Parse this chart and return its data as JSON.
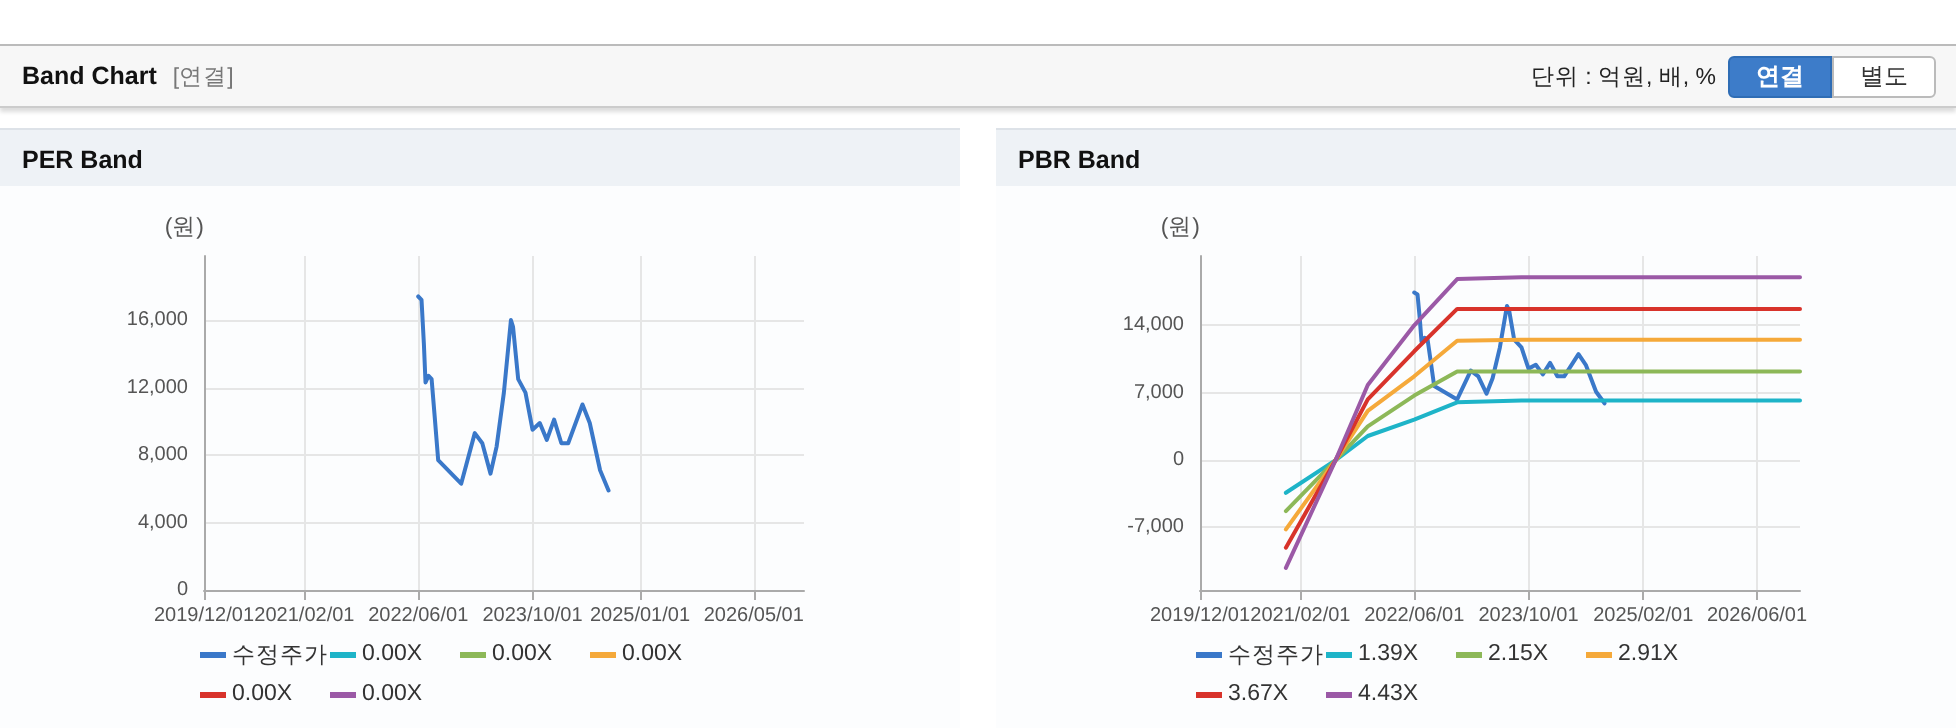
{
  "chart_data": [
    {
      "type": "other",
      "title": "Band Chart",
      "annotations": [
        "[연결]",
        "단위 : 억원, 배, %",
        "연결",
        "별도"
      ]
    },
    {
      "type": "line",
      "title": "PER Band",
      "ylabel": "(원)",
      "xlim": [
        "2019-12-01",
        "2026-12-01"
      ],
      "xticks": [
        {
          "value": "2019-12-01",
          "label": "2019/12/01"
        },
        {
          "value": "2021-02-01",
          "label": "2021/02/01"
        },
        {
          "value": "2022-06-01",
          "label": "2022/06/01"
        },
        {
          "value": "2023-10-01",
          "label": "2023/10/01"
        },
        {
          "value": "2025-01-01",
          "label": "2025/01/01"
        },
        {
          "value": "2026-05-01",
          "label": "2026/05/01"
        }
      ],
      "ylim": [
        0,
        19800
      ],
      "yticks": [
        0,
        {
          "value": 4000,
          "label": "4,000"
        },
        {
          "value": 8000,
          "label": "8,000"
        },
        {
          "value": 12000,
          "label": "12,000"
        },
        {
          "value": 16000,
          "label": "16,000"
        }
      ],
      "grid": true,
      "legend": "bottom",
      "marker": "none",
      "line_style": "solid",
      "series": [
        {
          "name": "수정주가",
          "color": "#3a78c9",
          "x": [
            "2022-06-01",
            "2022-06-15",
            "2022-06-25",
            "2022-07-02",
            "2022-07-15",
            "2022-07-28",
            "2022-08-10",
            "2022-08-25",
            "2022-12-01",
            "2023-01-28",
            "2023-03-01",
            "2023-04-05",
            "2023-05-01",
            "2023-06-01",
            "2023-07-01",
            "2023-07-10",
            "2023-08-01",
            "2023-09-01",
            "2023-10-01",
            "2023-11-01",
            "2023-12-01",
            "2024-01-01",
            "2024-02-01",
            "2024-03-01",
            "2024-05-01",
            "2024-06-01",
            "2024-07-15",
            "2024-08-20"
          ],
          "values": [
            17400,
            17200,
            14600,
            12300,
            12700,
            12500,
            10300,
            7700,
            6300,
            9300,
            8700,
            6900,
            8500,
            11700,
            16000,
            15600,
            12500,
            11700,
            9500,
            9900,
            8900,
            10100,
            8700,
            8700,
            11000,
            9900,
            7100,
            5900
          ]
        },
        {
          "name": "0.00X",
          "color": "#1eb4c8"
        },
        {
          "name": "0.00X",
          "color": "#8db858"
        },
        {
          "name": "0.00X",
          "color": "#f5a93a"
        },
        {
          "name": "0.00X",
          "color": "#d8332b"
        },
        {
          "name": "0.00X",
          "color": "#9b59a6"
        }
      ]
    },
    {
      "type": "line",
      "title": "PBR Band",
      "ylabel": "(원)",
      "xlim": [
        "2019-12-01",
        "2026-12-01"
      ],
      "xticks": [
        {
          "value": "2019-12-01",
          "label": "2019/12/01"
        },
        {
          "value": "2021-02-01",
          "label": "2021/02/01"
        },
        {
          "value": "2022-06-01",
          "label": "2022/06/01"
        },
        {
          "value": "2023-10-01",
          "label": "2023/10/01"
        },
        {
          "value": "2025-02-01",
          "label": "2025/02/01"
        },
        {
          "value": "2026-06-01",
          "label": "2026/06/01"
        }
      ],
      "ylim": [
        -13500,
        21200
      ],
      "yticks": [
        {
          "value": -7000,
          "label": "-7,000"
        },
        0,
        {
          "value": 7000,
          "label": "7,000"
        },
        {
          "value": 14000,
          "label": "14,000"
        }
      ],
      "grid": true,
      "legend": "bottom",
      "marker": "none",
      "line_style": "solid",
      "series": [
        {
          "name": "수정주가",
          "color": "#3a78c9",
          "x": [
            "2022-06-01",
            "2022-06-15",
            "2022-06-25",
            "2022-07-02",
            "2022-07-15",
            "2022-07-28",
            "2022-08-10",
            "2022-08-25",
            "2022-12-01",
            "2023-01-28",
            "2023-03-01",
            "2023-04-05",
            "2023-05-01",
            "2023-06-01",
            "2023-07-01",
            "2023-07-10",
            "2023-08-01",
            "2023-09-01",
            "2023-10-01",
            "2023-11-01",
            "2023-12-01",
            "2024-01-01",
            "2024-02-01",
            "2024-03-01",
            "2024-05-01",
            "2024-06-01",
            "2024-07-15",
            "2024-08-20"
          ],
          "values": [
            17400,
            17200,
            14600,
            12300,
            12700,
            12500,
            10300,
            7700,
            6300,
            9300,
            8700,
            6900,
            8500,
            11700,
            16000,
            15600,
            12500,
            11700,
            9500,
            9900,
            8900,
            10100,
            8700,
            8700,
            11000,
            9900,
            7100,
            5900
          ]
        },
        {
          "name": "1.39X",
          "color": "#1eb4c8",
          "x": [
            "2020-12-01",
            "2021-07-01",
            "2021-11-15",
            "2022-06-01",
            "2022-12-01",
            "2023-09-01",
            "2026-12-01"
          ],
          "values": [
            -3400,
            0,
            2500,
            4200,
            6000,
            6200,
            6200
          ]
        },
        {
          "name": "2.15X",
          "color": "#8db858",
          "x": [
            "2020-12-01",
            "2021-07-01",
            "2021-11-15",
            "2022-06-01",
            "2022-12-01",
            "2023-09-01",
            "2026-12-01"
          ],
          "values": [
            -5300,
            0,
            3500,
            6700,
            9200,
            9200,
            9200
          ]
        },
        {
          "name": "2.91X",
          "color": "#f5a93a",
          "x": [
            "2020-12-01",
            "2021-07-01",
            "2021-11-15",
            "2022-06-01",
            "2022-12-01",
            "2023-09-01",
            "2026-12-01"
          ],
          "values": [
            -7200,
            0,
            5100,
            8700,
            12400,
            12500,
            12500
          ]
        },
        {
          "name": "3.67X",
          "color": "#d8332b",
          "x": [
            "2020-12-01",
            "2021-07-01",
            "2021-11-15",
            "2022-06-01",
            "2022-12-01",
            "2023-09-01",
            "2026-12-01"
          ],
          "values": [
            -9100,
            0,
            6300,
            11300,
            15700,
            15700,
            15700
          ]
        },
        {
          "name": "4.43X",
          "color": "#9b59a6",
          "x": [
            "2020-12-01",
            "2021-07-01",
            "2021-11-15",
            "2022-06-01",
            "2022-12-01",
            "2023-09-01",
            "2026-12-01"
          ],
          "values": [
            -11200,
            0,
            7800,
            14000,
            18800,
            19000,
            19000
          ]
        }
      ]
    }
  ]
}
